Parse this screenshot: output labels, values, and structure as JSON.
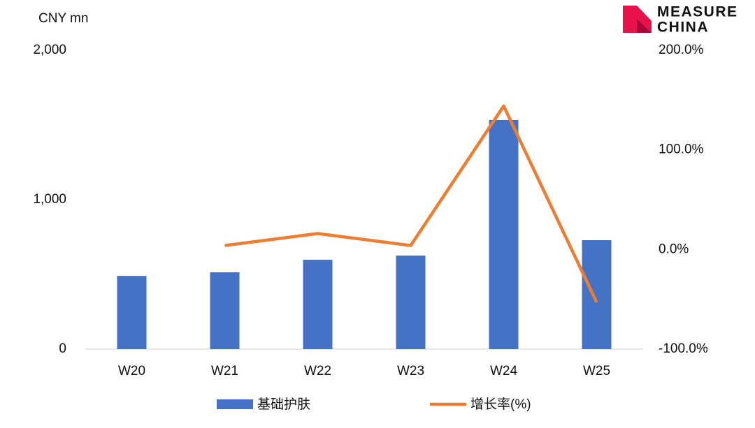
{
  "chart_data": {
    "type": "bar-line",
    "y_label": "CNY mn",
    "logo": [
      "MEASURE",
      "CHINA"
    ],
    "categories": [
      "W20",
      "W21",
      "W22",
      "W23",
      "W24",
      "W25"
    ],
    "series": [
      {
        "name": "基础护肤",
        "type": "bar",
        "color": "#4472c4",
        "values": [
          490,
          514,
          598,
          626,
          1533,
          729
        ]
      },
      {
        "name": "增长率(%)",
        "type": "line",
        "axis": "y2",
        "color": "#ed7d31",
        "values": [
          null,
          4,
          16,
          4,
          144,
          -53
        ]
      }
    ],
    "ylim": [
      0,
      2000
    ],
    "yticks": [
      0,
      {
        "value": 1000,
        "label": "1,000"
      },
      {
        "value": 2000,
        "label": "2,000"
      }
    ],
    "y2lim": [
      -100,
      200
    ],
    "y2ticks": [
      {
        "value": -100,
        "label": "-100.0%"
      },
      {
        "value": 0,
        "label": "0.0%"
      },
      {
        "value": 100,
        "label": "100.0%"
      },
      {
        "value": 200,
        "label": "200.0%"
      }
    ],
    "grid": false
  }
}
